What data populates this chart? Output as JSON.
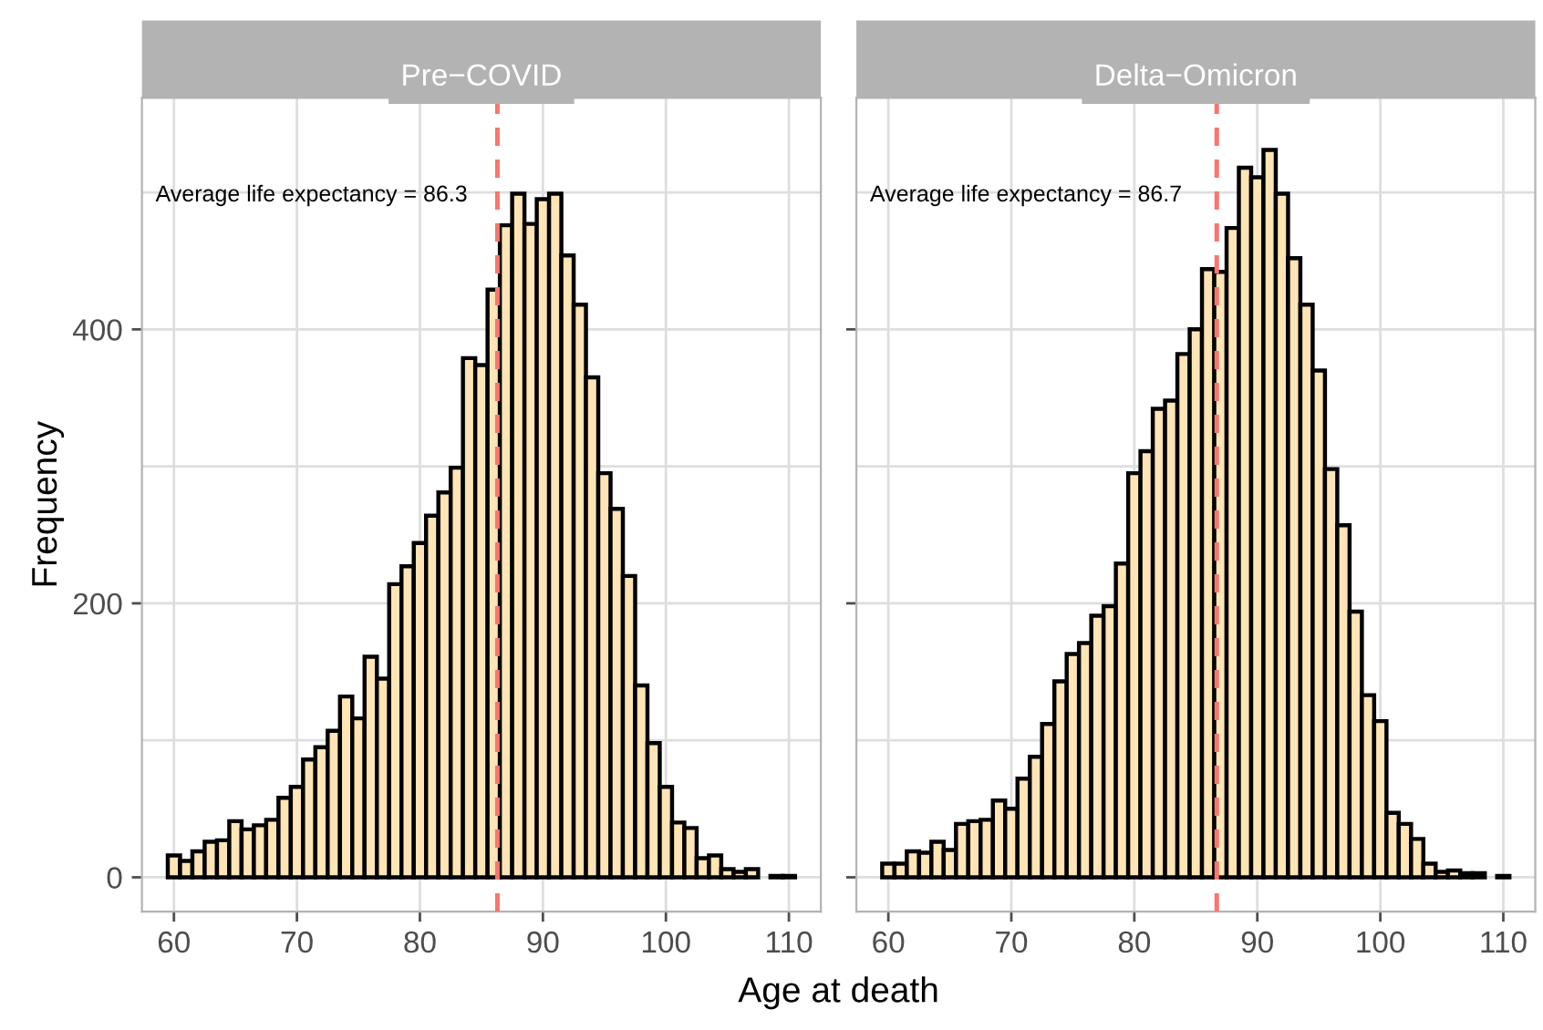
{
  "chart_data": [
    {
      "type": "histogram",
      "title": "Pre−COVID",
      "xlabel": "Age at death",
      "ylabel": "Frequency",
      "color": "#ffe4b5",
      "bins": [
        59.5,
        60.5,
        61.5,
        62.5,
        63.5,
        64.5,
        65.5,
        66.5,
        67.5,
        68.5,
        69.5,
        70.5,
        71.5,
        72.5,
        73.5,
        74.5,
        75.5,
        76.5,
        77.5,
        78.5,
        79.5,
        80.5,
        81.5,
        82.5,
        83.5,
        84.5,
        85.5,
        86.5,
        87.5,
        88.5,
        89.5,
        90.5,
        91.5,
        92.5,
        93.5,
        94.5,
        95.5,
        96.5,
        97.5,
        98.5,
        99.5,
        100.5,
        101.5,
        102.5,
        103.5,
        104.5,
        105.5,
        106.5,
        107.5,
        108.5,
        109.5,
        110.5
      ],
      "values": [
        16,
        12,
        19,
        26,
        27,
        41,
        35,
        38,
        42,
        58,
        66,
        86,
        95,
        107,
        132,
        116,
        161,
        145,
        214,
        227,
        244,
        264,
        281,
        299,
        379,
        374,
        429,
        476,
        499,
        477,
        495,
        499,
        454,
        418,
        365,
        295,
        269,
        220,
        140,
        98,
        66,
        40,
        36,
        14,
        16,
        6,
        4,
        6,
        0,
        1,
        1
      ],
      "xlim": [
        57.4,
        112.6
      ],
      "xticks": [
        60,
        70,
        80,
        90,
        100,
        110
      ],
      "ylim": [
        -25,
        569
      ],
      "yticks": [
        0,
        {
          "value": 100,
          "label": null
        },
        200,
        {
          "value": 300,
          "label": null
        },
        400,
        {
          "value": 500,
          "label": null
        }
      ],
      "grid": true,
      "ref_lines": [
        {
          "axis": "x",
          "value": 86.3,
          "color": "#f8766d",
          "line_style": "dashed"
        }
      ],
      "annotations": [
        "Average life expectancy = 86.3"
      ]
    },
    {
      "type": "histogram",
      "title": "Delta−Omicron",
      "color": "#ffe4b5",
      "bins": [
        59.5,
        60.5,
        61.5,
        62.5,
        63.5,
        64.5,
        65.5,
        66.5,
        67.5,
        68.5,
        69.5,
        70.5,
        71.5,
        72.5,
        73.5,
        74.5,
        75.5,
        76.5,
        77.5,
        78.5,
        79.5,
        80.5,
        81.5,
        82.5,
        83.5,
        84.5,
        85.5,
        86.5,
        87.5,
        88.5,
        89.5,
        90.5,
        91.5,
        92.5,
        93.5,
        94.5,
        95.5,
        96.5,
        97.5,
        98.5,
        99.5,
        100.5,
        101.5,
        102.5,
        103.5,
        104.5,
        105.5,
        106.5,
        107.5,
        108.5,
        109.5,
        110.5
      ],
      "values": [
        10,
        10,
        19,
        18,
        26,
        20,
        39,
        41,
        42,
        56,
        50,
        72,
        88,
        112,
        143,
        163,
        171,
        191,
        198,
        229,
        295,
        311,
        342,
        348,
        382,
        400,
        444,
        442,
        474,
        518,
        511,
        531,
        499,
        452,
        418,
        370,
        298,
        257,
        194,
        133,
        114,
        47,
        39,
        28,
        10,
        4,
        5,
        3,
        3,
        0,
        1
      ],
      "xlim": [
        57.4,
        112.6
      ],
      "xticks": [
        60,
        70,
        80,
        90,
        100,
        110
      ],
      "ylim": [
        -25,
        569
      ],
      "yticks": [
        0,
        {
          "value": 100,
          "label": null
        },
        200,
        {
          "value": 300,
          "label": null
        },
        400,
        {
          "value": 500,
          "label": null
        }
      ],
      "tick_labels": "x",
      "grid": true,
      "ref_lines": [
        {
          "axis": "x",
          "value": 86.7,
          "color": "#f8766d",
          "line_style": "dashed"
        }
      ],
      "annotations": [
        "Average life expectancy = 86.7"
      ]
    }
  ]
}
